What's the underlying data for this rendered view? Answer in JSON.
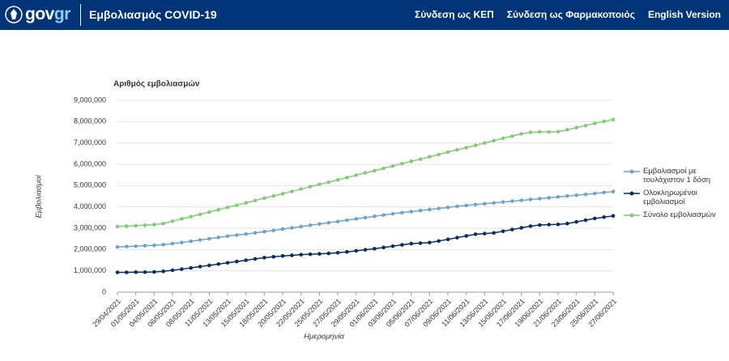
{
  "header": {
    "logo_gov": "gov",
    "logo_gr": "gr",
    "title": "Εμβολιασμός COVID-19",
    "nav": [
      "Σύνδεση ως ΚΕΠ",
      "Σύνδεση ως Φαρμακοποιός",
      "English Version"
    ]
  },
  "chart_data": {
    "type": "line",
    "title": "Αριθμός εμβολιασμών",
    "x_label": "Ημερομηνία",
    "y_label": "Εμβολιασμοί",
    "categories": [
      "29/04/2021",
      null,
      "01/05/2021",
      null,
      "04/05/2021",
      null,
      "06/05/2021",
      null,
      "08/05/2021",
      null,
      "11/05/2021",
      null,
      "13/05/2021",
      null,
      "15/05/2021",
      null,
      "18/05/2021",
      null,
      "20/05/2021",
      null,
      "22/05/2021",
      null,
      "25/05/2021",
      null,
      "27/05/2021",
      null,
      "29/05/2021",
      null,
      "01/06/2021",
      null,
      "03/06/2021",
      null,
      "05/06/2021",
      null,
      "07/06/2021",
      null,
      "09/06/2021",
      null,
      "11/06/2021",
      null,
      "13/06/2021",
      null,
      "15/06/2021",
      null,
      "17/06/2021",
      null,
      "19/06/2021",
      null,
      "21/06/2021",
      null,
      "23/06/2021",
      null,
      "25/06/2021",
      null,
      "27/06/2021"
    ],
    "series": [
      {
        "name": "Εμβολιασμοί με τουλάχιστον 1 δόση",
        "color": "#6fa3c9",
        "values": [
          2120000,
          2140000,
          2160000,
          2180000,
          2200000,
          2230000,
          2280000,
          2330000,
          2390000,
          2450000,
          2510000,
          2570000,
          2630000,
          2680000,
          2730000,
          2780000,
          2840000,
          2900000,
          2960000,
          3020000,
          3080000,
          3140000,
          3200000,
          3260000,
          3320000,
          3380000,
          3440000,
          3500000,
          3560000,
          3620000,
          3680000,
          3730000,
          3780000,
          3830000,
          3880000,
          3930000,
          3980000,
          4030000,
          4070000,
          4110000,
          4150000,
          4190000,
          4230000,
          4270000,
          4310000,
          4350000,
          4390000,
          4430000,
          4470000,
          4510000,
          4550000,
          4590000,
          4630000,
          4680000,
          4720000
        ]
      },
      {
        "name": "Ολοκληρωμένοι εμβολιασμοί",
        "color": "#0c2c5e",
        "values": [
          930000,
          930000,
          940000,
          940000,
          950000,
          980000,
          1030000,
          1080000,
          1140000,
          1200000,
          1260000,
          1320000,
          1380000,
          1440000,
          1500000,
          1560000,
          1620000,
          1660000,
          1700000,
          1730000,
          1760000,
          1780000,
          1800000,
          1820000,
          1850000,
          1890000,
          1940000,
          1990000,
          2040000,
          2100000,
          2160000,
          2220000,
          2280000,
          2300000,
          2330000,
          2400000,
          2480000,
          2560000,
          2640000,
          2720000,
          2750000,
          2780000,
          2860000,
          2940000,
          3020000,
          3100000,
          3150000,
          3170000,
          3180000,
          3220000,
          3300000,
          3380000,
          3460000,
          3520000,
          3580000
        ]
      },
      {
        "name": "Σύνολο εμβολιασμών",
        "color": "#85c97a",
        "values": [
          3080000,
          3100000,
          3120000,
          3140000,
          3170000,
          3220000,
          3330000,
          3440000,
          3540000,
          3650000,
          3760000,
          3870000,
          3980000,
          4080000,
          4190000,
          4300000,
          4410000,
          4520000,
          4620000,
          4730000,
          4840000,
          4950000,
          5060000,
          5160000,
          5270000,
          5380000,
          5490000,
          5600000,
          5700000,
          5810000,
          5920000,
          6030000,
          6140000,
          6240000,
          6350000,
          6460000,
          6570000,
          6680000,
          6780000,
          6890000,
          7000000,
          7110000,
          7220000,
          7320000,
          7430000,
          7500000,
          7520000,
          7520000,
          7530000,
          7620000,
          7720000,
          7820000,
          7920000,
          8010000,
          8100000
        ]
      }
    ],
    "ylim": [
      0,
      9000000
    ],
    "yticks": [
      0,
      {
        "value": 1000000,
        "label": "1,000,000"
      },
      {
        "value": 2000000,
        "label": "2,000,000"
      },
      {
        "value": 3000000,
        "label": "3,000,000"
      },
      {
        "value": 4000000,
        "label": "4,000,000"
      },
      {
        "value": 5000000,
        "label": "5,000,000"
      },
      {
        "value": 6000000,
        "label": "6,000,000"
      },
      {
        "value": 7000000,
        "label": "7,000,000"
      },
      {
        "value": 8000000,
        "label": "8,000,000"
      },
      {
        "value": 9000000,
        "label": "9,000,000"
      }
    ],
    "grid": true,
    "legend": "right"
  }
}
